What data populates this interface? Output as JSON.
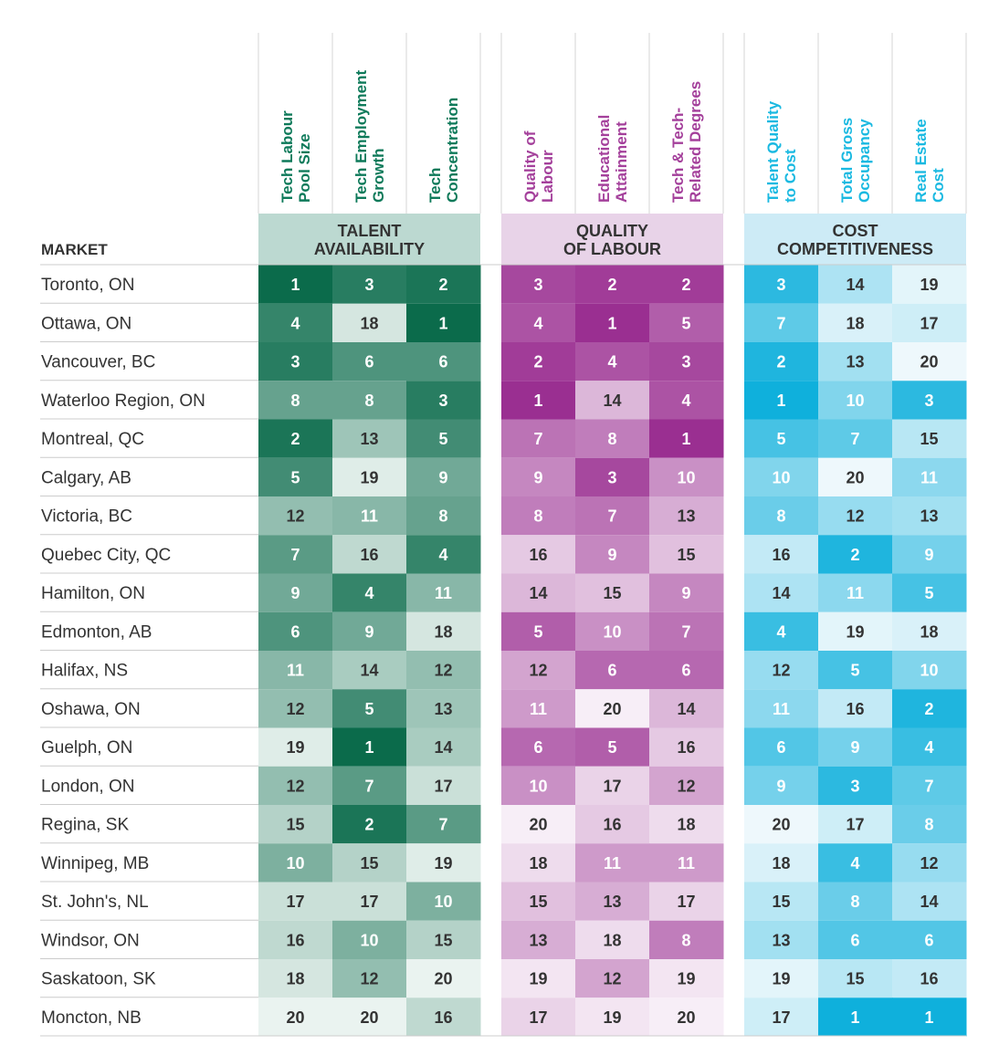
{
  "chart_data": {
    "type": "table",
    "market_header": "MARKET",
    "groups": [
      {
        "key": "talent",
        "lines": [
          "TALENT",
          "AVAILABILITY"
        ],
        "color": "#0e7a5a",
        "header_bg": "#bcd9d1",
        "low_color": "#0b6b4b",
        "high_color": "#eaf3f0"
      },
      {
        "key": "quality",
        "lines": [
          "QUALITY",
          "OF LABOUR"
        ],
        "color": "#a4409b",
        "header_bg": "#e8d3e8",
        "low_color": "#9a2f91",
        "high_color": "#f7eef7"
      },
      {
        "key": "cost",
        "lines": [
          "COST",
          "COMPETITIVENESS"
        ],
        "color": "#1ab9e1",
        "header_bg": "#cdebf6",
        "low_color": "#0fb0dc",
        "high_color": "#eef8fc"
      }
    ],
    "columns": [
      {
        "group": "talent",
        "lines": [
          "Tech Labour",
          "Pool Size"
        ]
      },
      {
        "group": "talent",
        "lines": [
          "Tech Employment",
          "Growth"
        ]
      },
      {
        "group": "talent",
        "lines": [
          "Tech",
          "Concentration"
        ]
      },
      {
        "group": "quality",
        "lines": [
          "Quality of",
          "Labour"
        ]
      },
      {
        "group": "quality",
        "lines": [
          "Educational",
          "Attainment"
        ]
      },
      {
        "group": "quality",
        "lines": [
          "Tech & Tech-",
          "Related Degrees"
        ]
      },
      {
        "group": "cost",
        "lines": [
          "Talent Quality",
          "to Cost"
        ]
      },
      {
        "group": "cost",
        "lines": [
          "Total Gross",
          "Occupancy"
        ]
      },
      {
        "group": "cost",
        "lines": [
          "Real Estate",
          "Cost"
        ]
      }
    ],
    "rank_min": 1,
    "rank_max": 20,
    "rows": [
      {
        "market": "Toronto, ON",
        "values": [
          1,
          3,
          2,
          3,
          2,
          2,
          3,
          14,
          19
        ]
      },
      {
        "market": "Ottawa, ON",
        "values": [
          4,
          18,
          1,
          4,
          1,
          5,
          7,
          18,
          17
        ]
      },
      {
        "market": "Vancouver, BC",
        "values": [
          3,
          6,
          6,
          2,
          4,
          3,
          2,
          13,
          20
        ]
      },
      {
        "market": "Waterloo Region, ON",
        "values": [
          8,
          8,
          3,
          1,
          14,
          4,
          1,
          10,
          3
        ]
      },
      {
        "market": "Montreal, QC",
        "values": [
          2,
          13,
          5,
          7,
          8,
          1,
          5,
          7,
          15
        ]
      },
      {
        "market": "Calgary, AB",
        "values": [
          5,
          19,
          9,
          9,
          3,
          10,
          10,
          20,
          11
        ]
      },
      {
        "market": "Victoria, BC",
        "values": [
          12,
          11,
          8,
          8,
          7,
          13,
          8,
          12,
          13
        ]
      },
      {
        "market": "Quebec City, QC",
        "values": [
          7,
          16,
          4,
          16,
          9,
          15,
          16,
          2,
          9
        ]
      },
      {
        "market": "Hamilton, ON",
        "values": [
          9,
          4,
          11,
          14,
          15,
          9,
          14,
          11,
          5
        ]
      },
      {
        "market": "Edmonton, AB",
        "values": [
          6,
          9,
          18,
          5,
          10,
          7,
          4,
          19,
          18
        ]
      },
      {
        "market": "Halifax, NS",
        "values": [
          11,
          14,
          12,
          12,
          6,
          6,
          12,
          5,
          10
        ]
      },
      {
        "market": "Oshawa, ON",
        "values": [
          12,
          5,
          13,
          11,
          20,
          14,
          11,
          16,
          2
        ]
      },
      {
        "market": "Guelph, ON",
        "values": [
          19,
          1,
          14,
          6,
          5,
          16,
          6,
          9,
          4
        ]
      },
      {
        "market": "London, ON",
        "values": [
          12,
          7,
          17,
          10,
          17,
          12,
          9,
          3,
          7
        ]
      },
      {
        "market": "Regina, SK",
        "values": [
          15,
          2,
          7,
          20,
          16,
          18,
          20,
          17,
          8
        ]
      },
      {
        "market": "Winnipeg, MB",
        "values": [
          10,
          15,
          19,
          18,
          11,
          11,
          18,
          4,
          12
        ]
      },
      {
        "market": "St. John's, NL",
        "values": [
          17,
          17,
          10,
          15,
          13,
          17,
          15,
          8,
          14
        ]
      },
      {
        "market": "Windsor, ON",
        "values": [
          16,
          10,
          15,
          13,
          18,
          8,
          13,
          6,
          6
        ]
      },
      {
        "market": "Saskatoon, SK",
        "values": [
          18,
          12,
          20,
          19,
          12,
          19,
          19,
          15,
          16
        ]
      },
      {
        "market": "Moncton, NB",
        "values": [
          20,
          20,
          16,
          17,
          19,
          20,
          17,
          1,
          1
        ]
      }
    ]
  }
}
